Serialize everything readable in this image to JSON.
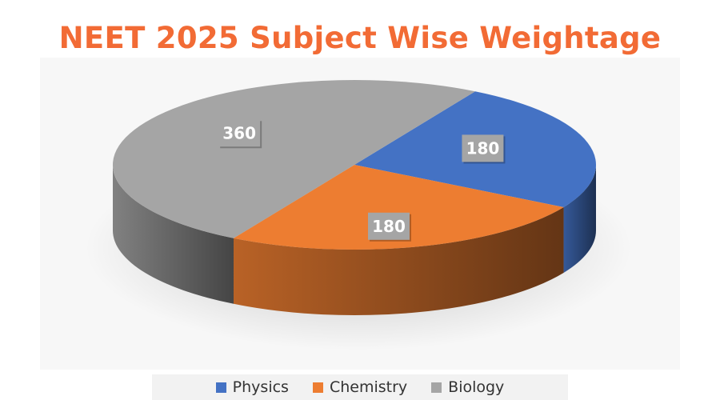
{
  "chart_data": {
    "type": "pie",
    "title": "NEET 2025 Subject Wise Weightage",
    "categories": [
      "Physics",
      "Chemistry",
      "Biology"
    ],
    "values": [
      180,
      180,
      360
    ],
    "data_labels": [
      "180",
      "180",
      "360"
    ],
    "colors": [
      "#4472c4",
      "#ed7d31",
      "#a5a5a5"
    ],
    "legend_position": "bottom",
    "style": "3d"
  },
  "theme": {
    "title_color": "#f26b35",
    "label_bg": "#a5a5a5",
    "label_text": "#ffffff"
  }
}
